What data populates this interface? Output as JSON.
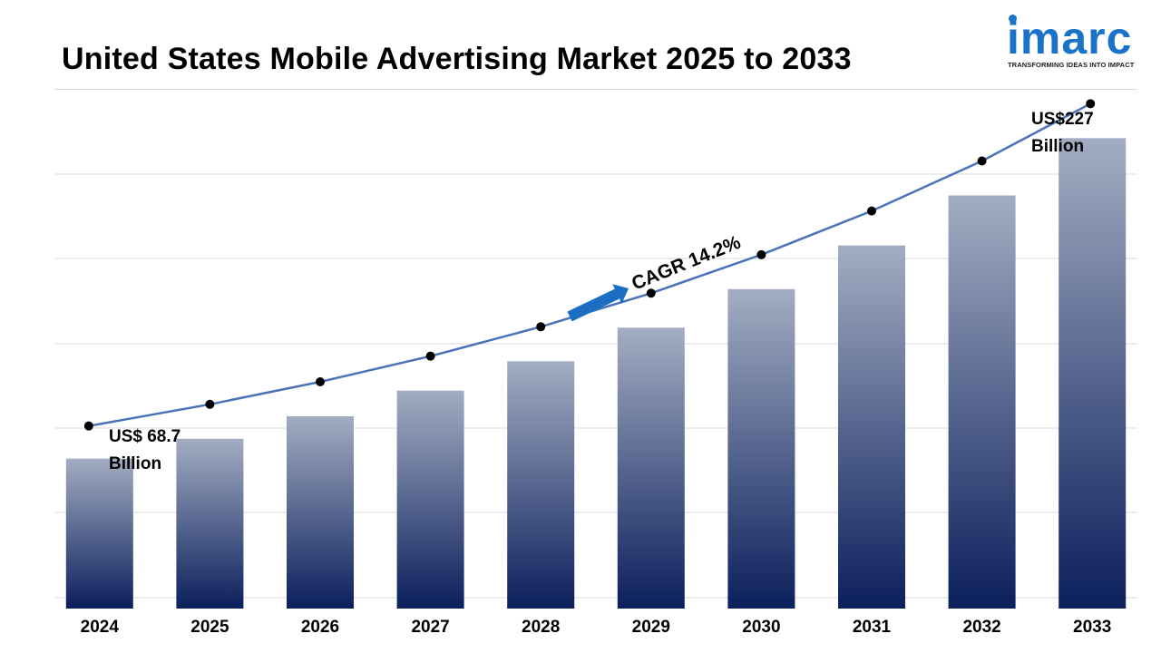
{
  "header": {
    "title": "United States Mobile Advertising Market 2025 to 2033"
  },
  "logo": {
    "wordmark": "imarc",
    "tagline": "TRANSFORMING IDEAS INTO IMPACT",
    "color": "#1a73c8"
  },
  "chart_data": {
    "type": "bar",
    "title": "United States Mobile Advertising Market 2025 to 2033",
    "categories": [
      "2024",
      "2025",
      "2026",
      "2027",
      "2028",
      "2029",
      "2030",
      "2031",
      "2032",
      "2033"
    ],
    "series": [
      {
        "values": [
          68.7,
          78.5,
          89.6,
          102.3,
          116.8,
          133.4,
          152.4,
          174.0,
          198.7,
          227
        ]
      }
    ],
    "trend_line": true,
    "annotations": {
      "start": {
        "line1": "US$ 68.7",
        "line2": "Billion"
      },
      "end": {
        "line1": "US$227",
        "line2": "Billion"
      },
      "cagr": "CAGR 14.2%"
    },
    "ylim": [
      0,
      250
    ],
    "grid": true,
    "legend": "none",
    "colors": {
      "bar_top": "#a3adc2",
      "bar_bottom": "#0b1f5c",
      "line": "#4a72b8",
      "marker": "#000000",
      "arrow": "#1a6fc4",
      "grid": "#d9d9d9"
    }
  }
}
